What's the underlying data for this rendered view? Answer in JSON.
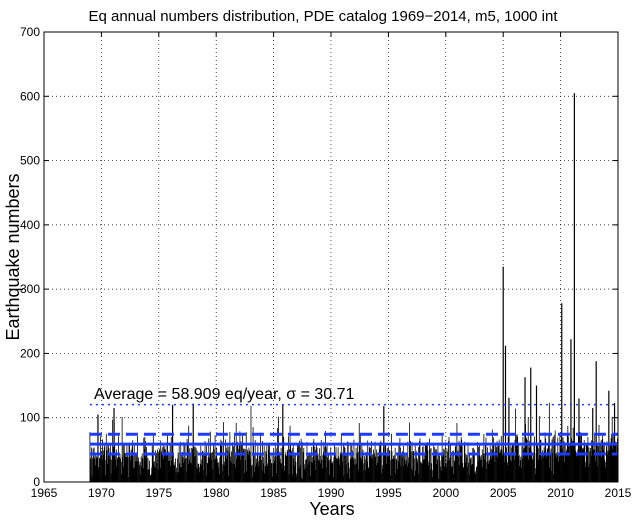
{
  "chart_data": {
    "type": "bar",
    "title": "Eq annual numbers distribution, PDE catalog 1969−2014, m5, 1000 int",
    "xlabel": "Years",
    "ylabel": "Earthquake numbers",
    "xlim": [
      1965,
      2015
    ],
    "ylim": [
      0,
      700
    ],
    "xticks": [
      "1965",
      "1970",
      "1975",
      "1980",
      "1985",
      "1990",
      "1995",
      "2000",
      "2005",
      "2010",
      "2015"
    ],
    "yticks": [
      "0",
      "100",
      "200",
      "300",
      "400",
      "500",
      "600",
      "700"
    ],
    "grid": true,
    "data_start_year": 1969,
    "data_end_year": 2015,
    "interval_count": 1000,
    "bar_color": "#000000",
    "line_color": "#1a3cff",
    "annotation": "Average = 58.909 eq/year,  σ = 30.71",
    "reference_lines": [
      {
        "name": "average",
        "value": 58.909,
        "style": "solid"
      },
      {
        "name": "average plus half sigma",
        "value": 74.264,
        "style": "dashed"
      },
      {
        "name": "average minus half sigma",
        "value": 43.554,
        "style": "dashed"
      },
      {
        "name": "average plus two sigma",
        "value": 120.33,
        "style": "dotted"
      }
    ],
    "peaks": [
      {
        "year": 1969.7,
        "value": 105
      },
      {
        "year": 1971.1,
        "value": 115
      },
      {
        "year": 1976.2,
        "value": 120
      },
      {
        "year": 1978.0,
        "value": 122
      },
      {
        "year": 1985.8,
        "value": 120
      },
      {
        "year": 1994.6,
        "value": 118
      },
      {
        "year": 2005.0,
        "value": 335
      },
      {
        "year": 2005.2,
        "value": 212
      },
      {
        "year": 2005.5,
        "value": 131
      },
      {
        "year": 2006.9,
        "value": 163
      },
      {
        "year": 2007.4,
        "value": 178
      },
      {
        "year": 2007.9,
        "value": 150
      },
      {
        "year": 2010.1,
        "value": 278
      },
      {
        "year": 2010.9,
        "value": 222
      },
      {
        "year": 2011.2,
        "value": 605
      },
      {
        "year": 2011.6,
        "value": 130
      },
      {
        "year": 2012.8,
        "value": 115
      },
      {
        "year": 2013.1,
        "value": 188
      },
      {
        "year": 2014.2,
        "value": 142
      },
      {
        "year": 2014.7,
        "value": 123
      }
    ]
  }
}
